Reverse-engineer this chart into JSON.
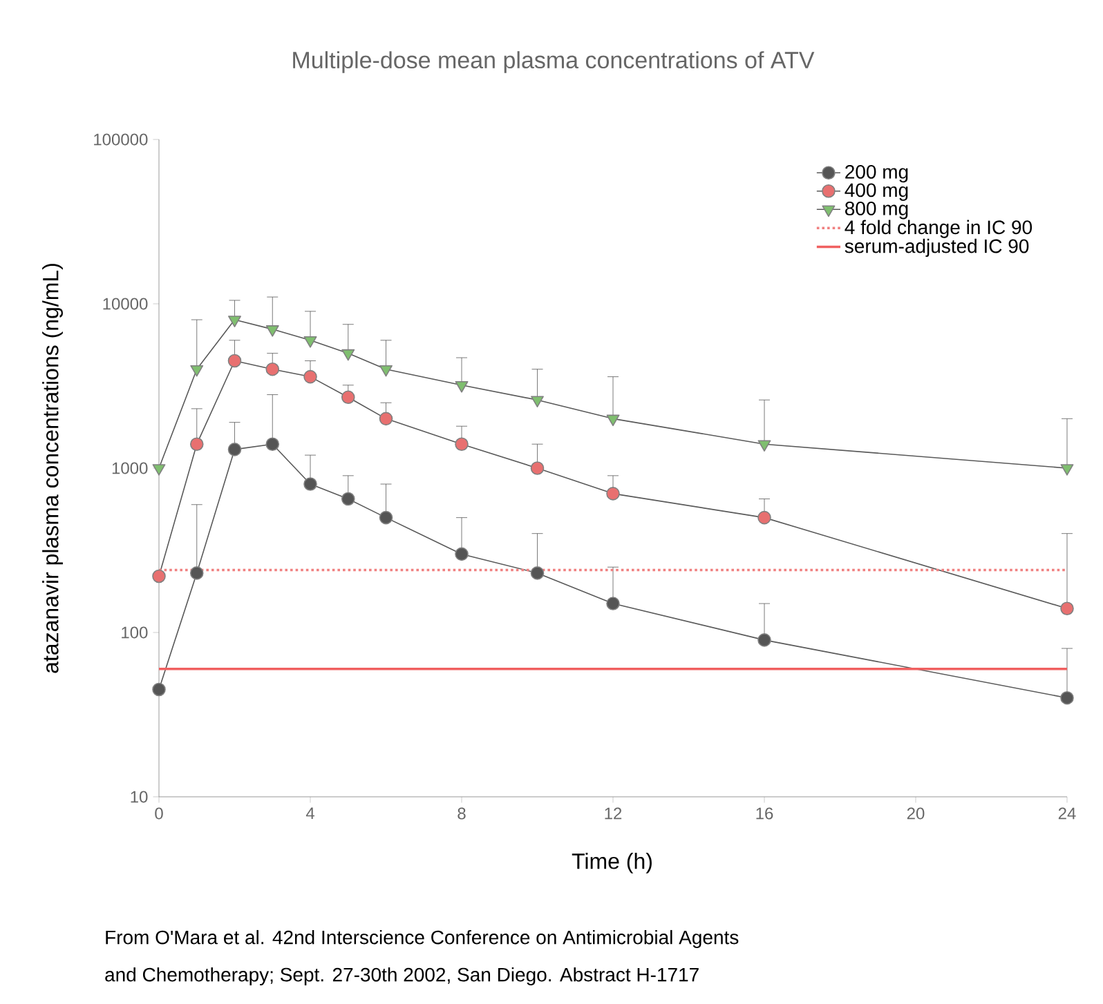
{
  "chart_data": {
    "type": "line",
    "title": "Multiple-dose mean plasma concentrations of ATV",
    "xlabel": "Time (h)",
    "ylabel": "atazanavir plasma concentrations (ng/mL)",
    "x": [
      0,
      1,
      2,
      3,
      4,
      5,
      6,
      8,
      10,
      12,
      16,
      24
    ],
    "series": [
      {
        "name": "200 mg",
        "color": "#555555",
        "marker": "circle",
        "values": [
          45,
          230,
          1300,
          1400,
          800,
          650,
          500,
          300,
          230,
          150,
          90,
          40
        ],
        "errors": [
          null,
          [
            230,
            600
          ],
          [
            1300,
            1900
          ],
          [
            1400,
            2800
          ],
          [
            800,
            1200
          ],
          [
            650,
            900
          ],
          [
            500,
            800
          ],
          [
            300,
            500
          ],
          [
            230,
            400
          ],
          [
            150,
            250
          ],
          [
            90,
            150
          ],
          [
            40,
            80
          ]
        ]
      },
      {
        "name": "400 mg",
        "color": "#e87070",
        "marker": "circle",
        "values": [
          220,
          1400,
          4500,
          4000,
          3600,
          2700,
          2000,
          1400,
          1000,
          700,
          500,
          140
        ],
        "errors": [
          null,
          [
            1400,
            2300
          ],
          [
            4500,
            6000
          ],
          [
            4000,
            5000
          ],
          [
            3600,
            4500
          ],
          [
            2700,
            3200
          ],
          [
            2000,
            2500
          ],
          [
            1400,
            1800
          ],
          [
            1000,
            1400
          ],
          [
            700,
            900
          ],
          [
            500,
            650
          ],
          [
            140,
            400
          ]
        ]
      },
      {
        "name": "800 mg",
        "color": "#7fbf6f",
        "marker": "triangle",
        "values": [
          1000,
          4000,
          8000,
          7000,
          6000,
          5000,
          4000,
          3200,
          2600,
          2000,
          1400,
          1000
        ],
        "errors": [
          null,
          [
            4000,
            8000
          ],
          [
            8000,
            10500
          ],
          [
            7000,
            11000
          ],
          [
            6000,
            9000
          ],
          [
            5000,
            7500
          ],
          [
            4000,
            6000
          ],
          [
            3200,
            4700
          ],
          [
            2600,
            4000
          ],
          [
            2000,
            3600
          ],
          [
            1400,
            2600
          ],
          [
            1000,
            2000
          ]
        ]
      }
    ],
    "ref_lines": [
      {
        "axis": "y",
        "value": 240,
        "label": "4 fold change in IC 90",
        "color": "#f08080",
        "line_style": "dotted"
      },
      {
        "axis": "y",
        "value": 60,
        "label": "serum-adjusted IC 90",
        "color": "#f06060",
        "line_style": "solid"
      }
    ],
    "log": "y",
    "xlim": [
      0,
      24
    ],
    "ylim": [
      10,
      100000
    ],
    "xticks": [
      0,
      4,
      8,
      12,
      16,
      20,
      24
    ],
    "yticks": [
      10,
      100,
      1000,
      10000,
      100000
    ],
    "grid": false,
    "legend": "top right",
    "annotations": [
      "From O'Mara et al. 42nd Interscience Conference on Antimicrobial Agents",
      "and Chemotherapy; Sept. 27-30th 2002, San Diego. Abstract H-1717"
    ]
  }
}
